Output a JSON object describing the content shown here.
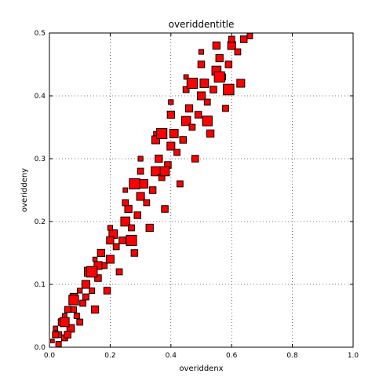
{
  "chart_data": {
    "type": "scatter",
    "title": "overiddentitle",
    "xlabel": "overiddenx",
    "ylabel": "overiddeny",
    "xlim": [
      0,
      1
    ],
    "ylim": [
      0,
      0.5
    ],
    "xticks": [
      "0.0",
      "0.2",
      "0.4",
      "0.6",
      "0.8",
      "1.0"
    ],
    "yticks": [
      "0.0",
      "0.1",
      "0.2",
      "0.3",
      "0.4",
      "0.5"
    ],
    "grid": true,
    "marker": "square",
    "marker_color": "#ff0000",
    "edge_color": "#000000",
    "series": [
      {
        "points": [
          [
            0.01,
            0.01,
            0.012
          ],
          [
            0.03,
            0.005,
            0.018
          ],
          [
            0.05,
            0.015,
            0.02
          ],
          [
            0.02,
            0.03,
            0.015
          ],
          [
            0.04,
            0.04,
            0.022
          ],
          [
            0.07,
            0.03,
            0.025
          ],
          [
            0.06,
            0.06,
            0.02
          ],
          [
            0.09,
            0.05,
            0.018
          ],
          [
            0.08,
            0.08,
            0.024
          ],
          [
            0.11,
            0.07,
            0.02
          ],
          [
            0.12,
            0.1,
            0.026
          ],
          [
            0.14,
            0.09,
            0.018
          ],
          [
            0.13,
            0.12,
            0.03
          ],
          [
            0.16,
            0.11,
            0.022
          ],
          [
            0.18,
            0.13,
            0.02
          ],
          [
            0.17,
            0.15,
            0.024
          ],
          [
            0.2,
            0.14,
            0.026
          ],
          [
            0.22,
            0.16,
            0.02
          ],
          [
            0.21,
            0.18,
            0.028
          ],
          [
            0.24,
            0.17,
            0.022
          ],
          [
            0.25,
            0.2,
            0.03
          ],
          [
            0.27,
            0.19,
            0.02
          ],
          [
            0.26,
            0.22,
            0.024
          ],
          [
            0.29,
            0.21,
            0.022
          ],
          [
            0.3,
            0.24,
            0.026
          ],
          [
            0.32,
            0.23,
            0.02
          ],
          [
            0.31,
            0.26,
            0.028
          ],
          [
            0.34,
            0.25,
            0.022
          ],
          [
            0.35,
            0.28,
            0.03
          ],
          [
            0.37,
            0.27,
            0.02
          ],
          [
            0.36,
            0.3,
            0.024
          ],
          [
            0.39,
            0.29,
            0.022
          ],
          [
            0.4,
            0.32,
            0.026
          ],
          [
            0.42,
            0.31,
            0.02
          ],
          [
            0.41,
            0.34,
            0.028
          ],
          [
            0.44,
            0.33,
            0.022
          ],
          [
            0.45,
            0.36,
            0.03
          ],
          [
            0.47,
            0.35,
            0.02
          ],
          [
            0.46,
            0.38,
            0.024
          ],
          [
            0.49,
            0.37,
            0.022
          ],
          [
            0.5,
            0.4,
            0.026
          ],
          [
            0.52,
            0.39,
            0.02
          ],
          [
            0.51,
            0.42,
            0.028
          ],
          [
            0.54,
            0.41,
            0.022
          ],
          [
            0.55,
            0.44,
            0.03
          ],
          [
            0.57,
            0.43,
            0.02
          ],
          [
            0.56,
            0.46,
            0.024
          ],
          [
            0.59,
            0.45,
            0.022
          ],
          [
            0.6,
            0.48,
            0.026
          ],
          [
            0.62,
            0.47,
            0.02
          ],
          [
            0.64,
            0.49,
            0.022
          ],
          [
            0.66,
            0.495,
            0.018
          ],
          [
            0.03,
            0.02,
            0.02
          ],
          [
            0.06,
            0.02,
            0.022
          ],
          [
            0.1,
            0.04,
            0.02
          ],
          [
            0.08,
            0.06,
            0.018
          ],
          [
            0.15,
            0.06,
            0.024
          ],
          [
            0.12,
            0.08,
            0.02
          ],
          [
            0.19,
            0.09,
            0.022
          ],
          [
            0.16,
            0.13,
            0.026
          ],
          [
            0.23,
            0.12,
            0.02
          ],
          [
            0.2,
            0.17,
            0.024
          ],
          [
            0.28,
            0.15,
            0.022
          ],
          [
            0.25,
            0.23,
            0.02
          ],
          [
            0.33,
            0.19,
            0.024
          ],
          [
            0.3,
            0.28,
            0.02
          ],
          [
            0.38,
            0.22,
            0.022
          ],
          [
            0.35,
            0.33,
            0.026
          ],
          [
            0.43,
            0.26,
            0.02
          ],
          [
            0.4,
            0.37,
            0.024
          ],
          [
            0.48,
            0.3,
            0.022
          ],
          [
            0.45,
            0.41,
            0.02
          ],
          [
            0.53,
            0.34,
            0.024
          ],
          [
            0.5,
            0.45,
            0.022
          ],
          [
            0.58,
            0.38,
            0.02
          ],
          [
            0.55,
            0.48,
            0.024
          ],
          [
            0.63,
            0.42,
            0.026
          ],
          [
            0.6,
            0.49,
            0.02
          ],
          [
            0.05,
            0.05,
            0.015
          ],
          [
            0.1,
            0.09,
            0.016
          ],
          [
            0.15,
            0.14,
            0.014
          ],
          [
            0.2,
            0.19,
            0.016
          ],
          [
            0.25,
            0.25,
            0.015
          ],
          [
            0.3,
            0.3,
            0.016
          ],
          [
            0.35,
            0.34,
            0.014
          ],
          [
            0.4,
            0.39,
            0.016
          ],
          [
            0.45,
            0.43,
            0.015
          ],
          [
            0.5,
            0.47,
            0.016
          ],
          [
            0.14,
            0.12,
            0.035
          ],
          [
            0.27,
            0.17,
            0.034
          ],
          [
            0.28,
            0.26,
            0.034
          ],
          [
            0.37,
            0.34,
            0.034
          ],
          [
            0.38,
            0.28,
            0.03
          ],
          [
            0.47,
            0.42,
            0.034
          ],
          [
            0.52,
            0.36,
            0.032
          ],
          [
            0.59,
            0.41,
            0.035
          ],
          [
            0.56,
            0.43,
            0.034
          ],
          [
            0.08,
            0.075,
            0.032
          ],
          [
            0.05,
            0.04,
            0.03
          ],
          [
            0.02,
            0.02,
            0.02
          ]
        ]
      }
    ]
  }
}
